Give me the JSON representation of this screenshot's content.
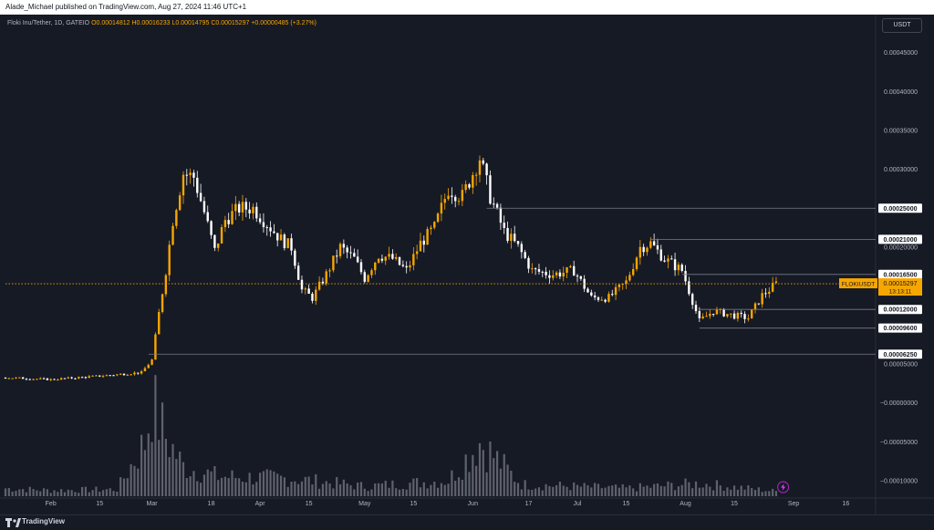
{
  "header": {
    "published": "Alade_Michael published on TradingView.com, Aug 27, 2024 11:46 UTC+1"
  },
  "legend": {
    "symbol": "Floki Inu/Tether, 1D, GATEIO",
    "open": "O0.00014812",
    "high": "H0.00016233",
    "low": "L0.00014795",
    "close": "C0.00015297",
    "change": "+0.00000485 (+3.27%)"
  },
  "currency_button": "USDT",
  "footer": {
    "brand": "TradingView"
  },
  "colors": {
    "background": "#161a25",
    "bull": "#f7a600",
    "bear": "#ffffff",
    "volume": "#787b86",
    "level_line": "#787b86",
    "price_line": "#f7a600"
  },
  "chart_data": {
    "type": "candlestick",
    "y_axis": {
      "ticks": [
        {
          "value": 0.00045,
          "label": "0.00045000"
        },
        {
          "value": 0.0004,
          "label": "0.00040000"
        },
        {
          "value": 0.00035,
          "label": "0.00035000"
        },
        {
          "value": 0.0003,
          "label": "0.00030000"
        },
        {
          "value": 0.0002,
          "label": "0.00020000"
        },
        {
          "value": 5e-05,
          "label": "0.00005000"
        },
        {
          "value": 0.0,
          "label": "−0.00000000"
        },
        {
          "value": -5e-05,
          "label": "−0.00005000"
        },
        {
          "value": -0.0001,
          "label": "−0.00010000"
        }
      ],
      "range": [
        -0.00012,
        0.00048
      ]
    },
    "x_axis": {
      "range": [
        "2024-01-19",
        "2024-09-24"
      ],
      "ticks": [
        {
          "date": "2024-02-01",
          "label": "Feb"
        },
        {
          "date": "2024-02-15",
          "label": "15"
        },
        {
          "date": "2024-03-01",
          "label": "Mar"
        },
        {
          "date": "2024-03-18",
          "label": "18"
        },
        {
          "date": "2024-04-01",
          "label": "Apr"
        },
        {
          "date": "2024-04-15",
          "label": "15"
        },
        {
          "date": "2024-05-01",
          "label": "May"
        },
        {
          "date": "2024-05-15",
          "label": "15"
        },
        {
          "date": "2024-06-01",
          "label": "Jun"
        },
        {
          "date": "2024-06-17",
          "label": "17"
        },
        {
          "date": "2024-07-01",
          "label": "Jul"
        },
        {
          "date": "2024-07-15",
          "label": "15"
        },
        {
          "date": "2024-08-01",
          "label": "Aug"
        },
        {
          "date": "2024-08-15",
          "label": "15"
        },
        {
          "date": "2024-09-01",
          "label": "Sep"
        },
        {
          "date": "2024-09-16",
          "label": "16"
        }
      ]
    },
    "levels": [
      {
        "value": 0.00025,
        "label": "0.00025000"
      },
      {
        "value": 0.00021,
        "label": "0.00021000"
      },
      {
        "value": 0.000165,
        "label": "0.00016500"
      },
      {
        "value": 0.00012,
        "label": "0.00012000"
      },
      {
        "value": 9.6e-05,
        "label": "0.00009600"
      },
      {
        "value": 6.25e-05,
        "label": "0.00006250"
      }
    ],
    "current_price": {
      "value": 0.00015297,
      "symbol_label": "FLOKIUSDT",
      "label": "0.00015297",
      "countdown": "13:13:11"
    },
    "close_series": [
      {
        "date": "2024-01-19",
        "close": 3.25e-05
      },
      {
        "date": "2024-02-01",
        "close": 3e-05
      },
      {
        "date": "2024-02-15",
        "close": 3.45e-05
      },
      {
        "date": "2024-02-27",
        "close": 3.9e-05
      },
      {
        "date": "2024-03-01",
        "close": 5.5e-05
      },
      {
        "date": "2024-03-03",
        "close": 0.000115
      },
      {
        "date": "2024-03-05",
        "close": 0.00017
      },
      {
        "date": "2024-03-07",
        "close": 0.000235
      },
      {
        "date": "2024-03-10",
        "close": 0.000295
      },
      {
        "date": "2024-03-13",
        "close": 0.00029
      },
      {
        "date": "2024-03-16",
        "close": 0.000245
      },
      {
        "date": "2024-03-19",
        "close": 0.000195
      },
      {
        "date": "2024-03-22",
        "close": 0.000235
      },
      {
        "date": "2024-03-26",
        "close": 0.00025
      },
      {
        "date": "2024-03-30",
        "close": 0.00025
      },
      {
        "date": "2024-04-03",
        "close": 0.00023
      },
      {
        "date": "2024-04-07",
        "close": 0.00021
      },
      {
        "date": "2024-04-10",
        "close": 0.0002
      },
      {
        "date": "2024-04-13",
        "close": 0.000145
      },
      {
        "date": "2024-04-16",
        "close": 0.000135
      },
      {
        "date": "2024-04-20",
        "close": 0.000165
      },
      {
        "date": "2024-04-24",
        "close": 0.0002
      },
      {
        "date": "2024-04-28",
        "close": 0.000185
      },
      {
        "date": "2024-05-01",
        "close": 0.00016
      },
      {
        "date": "2024-05-05",
        "close": 0.00019
      },
      {
        "date": "2024-05-09",
        "close": 0.000185
      },
      {
        "date": "2024-05-13",
        "close": 0.00017
      },
      {
        "date": "2024-05-17",
        "close": 0.000205
      },
      {
        "date": "2024-05-21",
        "close": 0.000225
      },
      {
        "date": "2024-05-25",
        "close": 0.000275
      },
      {
        "date": "2024-05-29",
        "close": 0.000265
      },
      {
        "date": "2024-06-03",
        "close": 0.000315
      },
      {
        "date": "2024-06-06",
        "close": 0.000265
      },
      {
        "date": "2024-06-10",
        "close": 0.00022
      },
      {
        "date": "2024-06-14",
        "close": 0.0002
      },
      {
        "date": "2024-06-18",
        "close": 0.00017
      },
      {
        "date": "2024-06-24",
        "close": 0.000165
      },
      {
        "date": "2024-06-30",
        "close": 0.00017
      },
      {
        "date": "2024-07-05",
        "close": 0.000135
      },
      {
        "date": "2024-07-10",
        "close": 0.000135
      },
      {
        "date": "2024-07-15",
        "close": 0.000155
      },
      {
        "date": "2024-07-19",
        "close": 0.0002
      },
      {
        "date": "2024-07-22",
        "close": 0.000205
      },
      {
        "date": "2024-07-26",
        "close": 0.000185
      },
      {
        "date": "2024-07-31",
        "close": 0.00017
      },
      {
        "date": "2024-08-05",
        "close": 0.000105
      },
      {
        "date": "2024-08-09",
        "close": 0.000118
      },
      {
        "date": "2024-08-14",
        "close": 0.000113
      },
      {
        "date": "2024-08-19",
        "close": 0.000109
      },
      {
        "date": "2024-08-23",
        "close": 0.000138
      },
      {
        "date": "2024-08-27",
        "close": 0.00015297
      }
    ],
    "volume_series_relative": [
      {
        "date": "2024-01-19",
        "v": 0.08
      },
      {
        "date": "2024-02-01",
        "v": 0.06
      },
      {
        "date": "2024-02-20",
        "v": 0.07
      },
      {
        "date": "2024-02-28",
        "v": 0.55
      },
      {
        "date": "2024-03-01",
        "v": 0.95
      },
      {
        "date": "2024-03-05",
        "v": 0.6
      },
      {
        "date": "2024-03-10",
        "v": 0.3
      },
      {
        "date": "2024-03-20",
        "v": 0.2
      },
      {
        "date": "2024-04-10",
        "v": 0.18
      },
      {
        "date": "2024-05-01",
        "v": 0.1
      },
      {
        "date": "2024-05-25",
        "v": 0.16
      },
      {
        "date": "2024-06-03",
        "v": 0.55
      },
      {
        "date": "2024-06-15",
        "v": 0.12
      },
      {
        "date": "2024-07-15",
        "v": 0.08
      },
      {
        "date": "2024-08-05",
        "v": 0.13
      },
      {
        "date": "2024-08-27",
        "v": 0.05
      }
    ]
  }
}
